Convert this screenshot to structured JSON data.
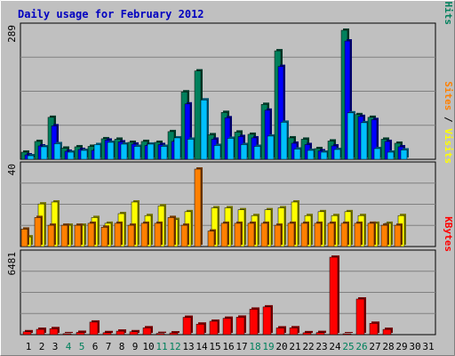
{
  "chart_data": [
    {
      "type": "bar",
      "title": "Daily usage for February 2012",
      "ymax_label": "289",
      "right_labels": [
        {
          "text": "Pages",
          "color": "#00c0ff"
        },
        {
          "text": " / ",
          "color": "#000000"
        },
        {
          "text": "Files",
          "color": "#0000ff"
        },
        {
          "text": " / ",
          "color": "#000000"
        },
        {
          "text": "Hits",
          "color": "#00805c"
        }
      ],
      "categories": [
        "1",
        "2",
        "3",
        "4",
        "5",
        "6",
        "7",
        "8",
        "9",
        "10",
        "11",
        "12",
        "13",
        "14",
        "15",
        "16",
        "17",
        "18",
        "19",
        "20",
        "21",
        "22",
        "23",
        "24",
        "25",
        "26",
        "27",
        "28",
        "29",
        "30",
        "31"
      ],
      "weekend_days": [
        "4",
        "5",
        "11",
        "12",
        "18",
        "19",
        "25",
        "26"
      ],
      "ylim": [
        0,
        289
      ],
      "series": [
        {
          "name": "Hits",
          "color": "#00805c",
          "values": [
            16,
            40,
            94,
            25,
            28,
            29,
            46,
            45,
            38,
            40,
            38,
            62,
            151,
            198,
            55,
            105,
            61,
            56,
            123,
            243,
            48,
            45,
            24,
            41,
            289,
            100,
            94,
            45,
            36,
            0,
            0
          ]
        },
        {
          "name": "Files",
          "color": "#0000ff",
          "values": [
            10,
            30,
            75,
            18,
            22,
            20,
            43,
            39,
            34,
            31,
            33,
            40,
            124,
            0,
            45,
            93,
            51,
            48,
            110,
            208,
            36,
            33,
            19,
            30,
            265,
            96,
            89,
            40,
            28,
            0,
            0
          ]
        },
        {
          "name": "Pages",
          "color": "#00c0ff",
          "values": [
            8,
            28,
            35,
            16,
            20,
            33,
            38,
            34,
            29,
            34,
            29,
            48,
            45,
            133,
            31,
            47,
            33,
            29,
            52,
            83,
            23,
            20,
            16,
            22,
            104,
            82,
            24,
            16,
            21,
            0,
            0
          ]
        }
      ]
    },
    {
      "type": "bar",
      "ymax_label": "40",
      "right_labels": [
        {
          "text": "Sites",
          "color": "#ff8000"
        },
        {
          "text": " / ",
          "color": "#000000"
        },
        {
          "text": "Visits",
          "color": "#ffff00"
        }
      ],
      "ylim": [
        0,
        40
      ],
      "series": [
        {
          "name": "Visits",
          "color": "#ffff00",
          "values": [
            5,
            22,
            23,
            11,
            11,
            15,
            12,
            17,
            23,
            16,
            21,
            14,
            18,
            0,
            20,
            20,
            19,
            16,
            19,
            20,
            23,
            16,
            18,
            16,
            18,
            16,
            12,
            12,
            16,
            0,
            0
          ]
        },
        {
          "name": "Sites",
          "color": "#ff8000",
          "values": [
            9,
            15,
            11,
            11,
            11,
            12,
            10,
            12,
            11,
            12,
            12,
            15,
            11,
            40,
            8,
            12,
            12,
            12,
            12,
            11,
            12,
            12,
            12,
            12,
            12,
            12,
            12,
            11,
            11,
            0,
            0
          ]
        }
      ]
    },
    {
      "type": "bar",
      "ymax_label": "6481",
      "right_labels": [
        {
          "text": "KBytes",
          "color": "#ff0000"
        }
      ],
      "ylim": [
        0,
        6481
      ],
      "series": [
        {
          "name": "KBytes",
          "color": "#ff0000",
          "values": [
            240,
            445,
            500,
            80,
            190,
            1050,
            168,
            293,
            240,
            570,
            100,
            145,
            1450,
            880,
            1120,
            1370,
            1460,
            2130,
            2320,
            560,
            570,
            160,
            178,
            6481,
            70,
            2980,
            950,
            440,
            0,
            0,
            0
          ]
        }
      ]
    }
  ]
}
